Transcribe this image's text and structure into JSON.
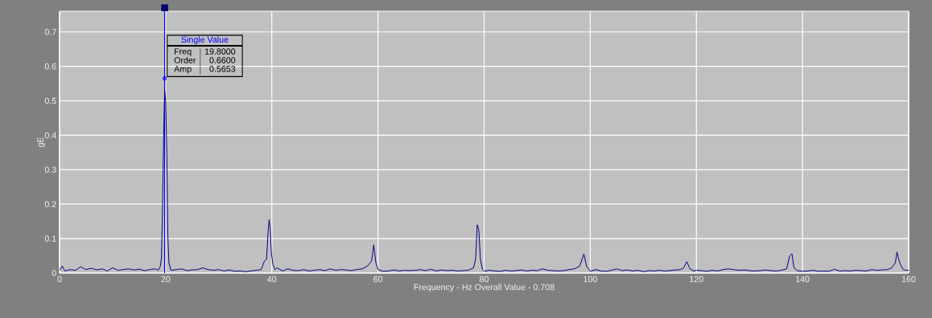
{
  "chart_data": {
    "type": "line",
    "xlabel": "Frequency - Hz  Overall Value - 0.708",
    "ylabel": "gE",
    "xlim": [
      0,
      160
    ],
    "ylim": [
      0,
      0.76
    ],
    "xticks": [
      0,
      20,
      40,
      60,
      80,
      100,
      120,
      140,
      160
    ],
    "yticks": [
      0,
      0.1,
      0.2,
      0.3,
      0.4,
      0.5,
      0.6,
      0.7
    ],
    "grid": true,
    "series": [
      {
        "color": "#000080",
        "x": [
          0,
          0.5,
          1,
          2,
          3,
          4,
          5,
          6,
          7,
          8,
          9,
          10,
          11,
          12,
          13,
          14,
          15,
          16,
          17,
          18,
          18.6,
          19,
          19.2,
          19.4,
          19.6,
          19.8,
          20,
          20.2,
          20.4,
          20.6,
          21,
          22,
          23,
          24,
          25,
          26,
          27,
          28,
          29,
          30,
          31,
          32,
          33,
          34,
          35,
          36,
          37,
          38,
          38.6,
          39,
          39.3,
          39.5,
          39.7,
          39.9,
          40.2,
          40.6,
          41,
          42,
          43,
          44,
          45,
          46,
          47,
          48,
          49,
          50,
          51,
          52,
          53,
          54,
          55,
          56,
          57,
          58,
          58.8,
          59.2,
          59.6,
          60,
          61,
          62,
          63,
          64,
          65,
          66,
          67,
          68,
          69,
          70,
          71,
          72,
          73,
          74,
          75,
          76,
          77,
          78,
          78.4,
          78.7,
          79,
          79.3,
          79.7,
          80,
          81,
          82,
          83,
          84,
          85,
          86,
          87,
          88,
          89,
          90,
          91,
          92,
          93,
          94,
          95,
          96,
          97,
          98,
          98.8,
          99.3,
          100,
          101,
          102,
          103,
          104,
          105,
          106,
          107,
          108,
          109,
          110,
          111,
          112,
          113,
          114,
          115,
          116,
          117,
          117.6,
          118.2,
          118.8,
          119.5,
          120,
          121,
          122,
          123,
          124,
          125,
          126,
          127,
          128,
          129,
          130,
          131,
          132,
          133,
          134,
          135,
          136,
          137,
          137.6,
          138,
          138.4,
          139,
          140,
          141,
          142,
          143,
          144,
          145,
          146,
          147,
          148,
          149,
          150,
          151,
          152,
          153,
          154,
          155,
          156,
          156.8,
          157.5,
          157.8,
          158.2,
          158.6,
          159,
          159.5,
          160
        ],
        "values": [
          0.008,
          0.02,
          0.006,
          0.01,
          0.008,
          0.018,
          0.01,
          0.014,
          0.009,
          0.012,
          0.006,
          0.015,
          0.008,
          0.01,
          0.012,
          0.009,
          0.011,
          0.007,
          0.01,
          0.012,
          0.008,
          0.02,
          0.045,
          0.18,
          0.39,
          0.531,
          0.5,
          0.351,
          0.111,
          0.03,
          0.008,
          0.01,
          0.012,
          0.007,
          0.009,
          0.01,
          0.015,
          0.01,
          0.008,
          0.01,
          0.006,
          0.009,
          0.005,
          0.006,
          0.004,
          0.006,
          0.008,
          0.01,
          0.035,
          0.04,
          0.12,
          0.155,
          0.13,
          0.06,
          0.025,
          0.01,
          0.015,
          0.006,
          0.012,
          0.008,
          0.007,
          0.01,
          0.006,
          0.008,
          0.01,
          0.007,
          0.012,
          0.008,
          0.01,
          0.009,
          0.007,
          0.01,
          0.012,
          0.02,
          0.035,
          0.082,
          0.03,
          0.01,
          0.005,
          0.006,
          0.009,
          0.006,
          0.008,
          0.007,
          0.008,
          0.01,
          0.007,
          0.011,
          0.006,
          0.009,
          0.007,
          0.008,
          0.006,
          0.007,
          0.008,
          0.015,
          0.04,
          0.14,
          0.125,
          0.04,
          0.01,
          0.005,
          0.008,
          0.006,
          0.005,
          0.008,
          0.006,
          0.007,
          0.009,
          0.006,
          0.008,
          0.007,
          0.012,
          0.008,
          0.007,
          0.006,
          0.007,
          0.01,
          0.012,
          0.02,
          0.055,
          0.02,
          0.005,
          0.01,
          0.006,
          0.005,
          0.008,
          0.012,
          0.007,
          0.009,
          0.006,
          0.008,
          0.004,
          0.007,
          0.006,
          0.008,
          0.006,
          0.007,
          0.009,
          0.01,
          0.015,
          0.033,
          0.012,
          0.006,
          0.008,
          0.007,
          0.005,
          0.008,
          0.006,
          0.01,
          0.012,
          0.01,
          0.008,
          0.009,
          0.007,
          0.006,
          0.007,
          0.009,
          0.007,
          0.006,
          0.008,
          0.012,
          0.05,
          0.056,
          0.015,
          0.007,
          0.005,
          0.006,
          0.008,
          0.005,
          0.006,
          0.005,
          0.011,
          0.006,
          0.007,
          0.006,
          0.008,
          0.007,
          0.006,
          0.01,
          0.008,
          0.009,
          0.01,
          0.015,
          0.03,
          0.061,
          0.035,
          0.02,
          0.01,
          0.008,
          0.008
        ]
      },
      {
        "type": "scatter",
        "marker": "diamond",
        "color": "#0000ff",
        "x": [
          19.8
        ],
        "values": [
          0.5653
        ]
      }
    ],
    "ref_lines": [
      {
        "axis": "x",
        "value": 19.8,
        "color": "#0000ff"
      }
    ],
    "annotations": [
      "Single Value",
      "Freq",
      "19.8000",
      "Order",
      "0.6600",
      "Amp",
      "0.5653"
    ]
  }
}
